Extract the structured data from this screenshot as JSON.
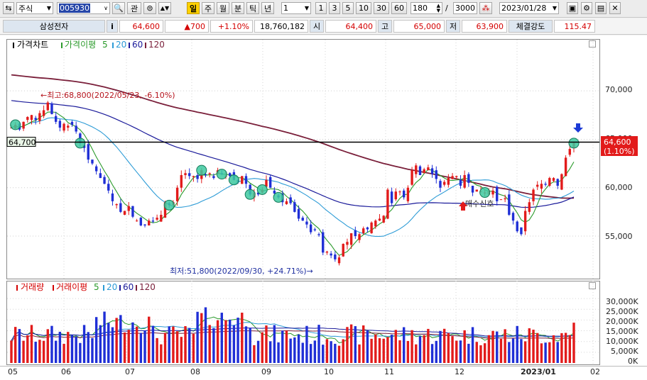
{
  "toolbar": {
    "market": "주식",
    "code": "005930",
    "btn_gwan": "관",
    "period_active": "일",
    "periods": [
      "주",
      "월",
      "분",
      "틱",
      "년"
    ],
    "interval_value": "1",
    "intervals": [
      "1",
      "3",
      "5",
      "10",
      "30",
      "60"
    ],
    "count_value": "180",
    "slash": "/",
    "total_value": "3000",
    "date_value": "2023/01/28"
  },
  "info": {
    "name": "삼성전자",
    "info_btn": "i",
    "price": "64,600",
    "change": "▲700",
    "change_rate": "+1.10%",
    "volume": "18,760,182",
    "open_label": "시",
    "open": "64,400",
    "high_label": "고",
    "high": "65,000",
    "low_label": "저",
    "low": "63,900",
    "strength_label": "체결강도",
    "strength": "115.47"
  },
  "price_panel": {
    "title": "가격차트",
    "ma_title": "가격이평",
    "ma_items": [
      "5",
      "20",
      "60",
      "120"
    ],
    "y_ticks": [
      "70,000",
      "65,000",
      "60,000",
      "55,000"
    ],
    "current_line_label": "64,700",
    "current_price_label": "64,600",
    "current_rate_label": "(1.10%)",
    "high_annotation": "←최고:68,800(2022/05/23, -6.10%)",
    "low_annotation": "최저:51,800(2022/09/30, +24.71%)→",
    "signal_label": "매수신호"
  },
  "volume_panel": {
    "title": "거래량",
    "ma_title": "거래이평",
    "ma_items": [
      "5",
      "20",
      "60",
      "120"
    ],
    "y_ticks": [
      "30,000K",
      "25,000K",
      "20,000K",
      "15,000K",
      "10,000K",
      "5,000K",
      "0K"
    ]
  },
  "x_axis": [
    "05",
    "06",
    "07",
    "08",
    "09",
    "10",
    "11",
    "12",
    "2023/01",
    "02"
  ],
  "colors": {
    "up": "#e21b1b",
    "down": "#1f2fd6",
    "ma5": "#2a9a2a",
    "ma20": "#2c9bd6",
    "ma60": "#1a1a9a",
    "ma120": "#7a1f3a"
  },
  "chart_data": {
    "type": "candlestick",
    "price_axis": {
      "ylim": [
        52000,
        72500
      ]
    },
    "volume_axis": {
      "ylim": [
        0,
        32000
      ]
    },
    "current_level": 64700,
    "last_price": 64600,
    "high_point": {
      "date": "2022/05/23",
      "price": 68800,
      "rate": "-6.10%"
    },
    "low_point": {
      "date": "2022/09/30",
      "price": 51800,
      "rate": "+24.71%"
    },
    "closes": [
      66200,
      66500,
      66000,
      66800,
      67300,
      67500,
      67000,
      67700,
      68000,
      68800,
      67600,
      66800,
      66200,
      66600,
      66400,
      66500,
      65800,
      64600,
      64100,
      62900,
      62500,
      61700,
      61000,
      60400,
      59700,
      58600,
      58300,
      57500,
      57600,
      58100,
      57000,
      56600,
      56100,
      56100,
      56600,
      56500,
      56900,
      57200,
      58500,
      58200,
      58500,
      60000,
      61300,
      61500,
      61200,
      61200,
      60900,
      61800,
      61300,
      61500,
      61000,
      61800,
      61400,
      61200,
      61200,
      60800,
      60600,
      61200,
      60400,
      59300,
      59500,
      59300,
      59800,
      60800,
      60000,
      59400,
      59000,
      58500,
      58600,
      58400,
      57500,
      56800,
      56600,
      56200,
      55400,
      55600,
      55100,
      53300,
      53400,
      53000,
      52600,
      52800,
      54200,
      54400,
      55300,
      55000,
      55200,
      55800,
      55700,
      56400,
      56600,
      56800,
      57100,
      59800,
      58400,
      59600,
      59600,
      59000,
      60000,
      61800,
      62300,
      61300,
      61900,
      62100,
      61400,
      60900,
      60000,
      60600,
      61000,
      61200,
      61200,
      60200,
      61300,
      60500,
      59500,
      59800,
      59600,
      59500,
      59700,
      59700,
      58600,
      58800,
      58900,
      57200,
      56600,
      55500,
      55200,
      57600,
      58500,
      59800,
      60300,
      60400,
      60300,
      61000,
      61000,
      60200,
      61400,
      63100,
      64000,
      64600
    ]
  }
}
